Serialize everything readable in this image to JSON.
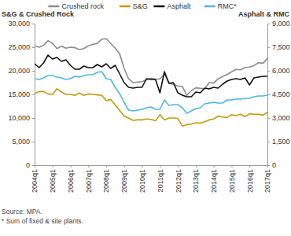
{
  "chart_data": {
    "type": "line",
    "y_label": "S&G & Crushed Rock",
    "y2_label": "Asphalt & RMC",
    "notes": [
      "Source: MPA.",
      "* Sum of fixed & site plants."
    ],
    "legend": "top",
    "grid": false,
    "categories": [
      "2004q1",
      null,
      null,
      null,
      "2005q1",
      null,
      null,
      null,
      "2006q1",
      null,
      null,
      null,
      "2007q1",
      null,
      null,
      null,
      "2008q1",
      null,
      null,
      null,
      "2009q1",
      null,
      null,
      null,
      "2010q1",
      null,
      null,
      null,
      "2011q1",
      null,
      null,
      null,
      "2012q1",
      null,
      null,
      null,
      "2013q1",
      null,
      null,
      null,
      "2014q1",
      null,
      null,
      null,
      "2015q1",
      null,
      null,
      null,
      "2016q1",
      null,
      null,
      null,
      "2017q1"
    ],
    "ylim": [
      0,
      30000
    ],
    "yticks": [
      0,
      {
        "value": 5000,
        "label": "5,000"
      },
      {
        "value": 10000,
        "label": "10,000"
      },
      {
        "value": 15000,
        "label": "15,000"
      },
      {
        "value": 20000,
        "label": "20,000"
      },
      {
        "value": 25000,
        "label": "25,000"
      },
      {
        "value": 30000,
        "label": "30,000"
      }
    ],
    "y2lim": [
      0,
      9000
    ],
    "y2ticks": [
      0,
      {
        "value": 1500,
        "label": "1,500"
      },
      {
        "value": 3000,
        "label": "3,000"
      },
      {
        "value": 4500,
        "label": "4,500"
      },
      {
        "value": 6000,
        "label": "6,000"
      },
      {
        "value": 7500,
        "label": "7,500"
      },
      {
        "value": 9000,
        "label": "9,000"
      }
    ],
    "series": [
      {
        "name": "Crushed rock",
        "color": "#8c8c8c",
        "values": [
          25300,
          25000,
          25400,
          26400,
          25800,
          24700,
          25200,
          24800,
          25000,
          24900,
          24500,
          24700,
          25300,
          25600,
          25800,
          26700,
          26800,
          25800,
          24800,
          23600,
          20500,
          18300,
          17500,
          17600,
          17700,
          18100,
          18400,
          18200,
          18300,
          19300,
          17500,
          17100,
          16800,
          16700,
          14800,
          15800,
          16400,
          16300,
          16200,
          17500,
          17400,
          18300,
          18800,
          19200,
          19800,
          20300,
          20200,
          20700,
          20800,
          21100,
          21700,
          21600,
          22600
        ]
      },
      {
        "name": "S&G",
        "color": "#c29b0c",
        "values": [
          15200,
          15600,
          15600,
          15100,
          15000,
          16200,
          15500,
          15000,
          15000,
          14800,
          15300,
          14800,
          15100,
          15000,
          14900,
          14800,
          13700,
          13900,
          12800,
          11600,
          10400,
          10000,
          9500,
          9600,
          9600,
          9800,
          9700,
          9400,
          10700,
          9600,
          10000,
          10000,
          9900,
          8300,
          8600,
          8700,
          9000,
          8900,
          9200,
          9600,
          9800,
          10400,
          10200,
          10100,
          10700,
          10500,
          10800,
          10300,
          10900,
          10800,
          10800,
          10600,
          11200
        ]
      },
      {
        "name": "Asphalt",
        "color": "#111111",
        "axis": "y2",
        "values": [
          6450,
          6200,
          6500,
          7000,
          6750,
          6850,
          6600,
          6700,
          6350,
          6100,
          6100,
          6300,
          6200,
          6200,
          6400,
          6250,
          6450,
          6150,
          6350,
          5800,
          5250,
          4950,
          4900,
          4950,
          4950,
          5500,
          5450,
          5450,
          4600,
          5950,
          5200,
          5250,
          4600,
          4450,
          4350,
          4350,
          4650,
          4600,
          4900,
          4850,
          4950,
          4900,
          5150,
          5350,
          5450,
          5500,
          5450,
          5550,
          5100,
          5550,
          5600,
          5650,
          5650
        ]
      },
      {
        "name": "RMC*",
        "color": "#4fb7e6",
        "axis": "y2",
        "values": [
          5500,
          5450,
          5550,
          5700,
          5700,
          5600,
          5550,
          5450,
          5500,
          5650,
          5600,
          5700,
          5750,
          5750,
          5900,
          5950,
          5500,
          5450,
          4950,
          4550,
          4000,
          3500,
          3450,
          3500,
          3550,
          3650,
          3700,
          3550,
          3550,
          4150,
          3800,
          3850,
          3850,
          3650,
          3300,
          3450,
          3600,
          3650,
          3900,
          3950,
          4000,
          3950,
          3950,
          4150,
          4150,
          4200,
          4200,
          4250,
          4250,
          4350,
          4400,
          4400,
          4450
        ]
      }
    ]
  }
}
